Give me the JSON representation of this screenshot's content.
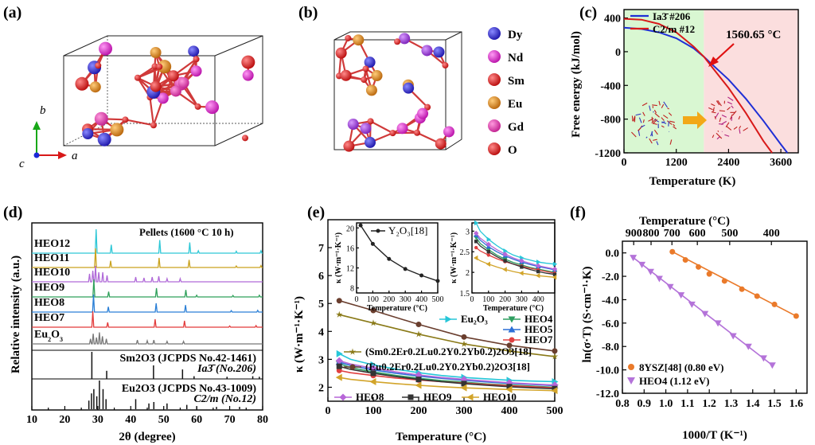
{
  "panels": {
    "a": {
      "label": "(a)",
      "axes": {
        "b": "b",
        "a": "a",
        "c": "c"
      }
    },
    "b": {
      "label": "(b)"
    },
    "c": {
      "label": "(c)"
    },
    "d": {
      "label": "(d)"
    },
    "e": {
      "label": "(e)"
    },
    "f": {
      "label": "(f)"
    }
  },
  "legend_b": [
    {
      "label": "Dy",
      "color": "#2a22c8"
    },
    {
      "label": "Nd",
      "color": "#e21fd9"
    },
    {
      "label": "Sm",
      "color": "#e01818"
    },
    {
      "label": "Eu",
      "color": "#e08a1e"
    },
    {
      "label": "Gd",
      "color": "#e83fb8"
    },
    {
      "label": "O",
      "color": "#ee1111"
    }
  ],
  "chart_data": [
    {
      "id": "c",
      "type": "line",
      "xlabel": "Temperature (K)",
      "ylabel": "Free energy (kJ/mol)",
      "xlim": [
        0,
        4000
      ],
      "ylim": [
        -1200,
        500
      ],
      "xticks": [
        0,
        1200,
        2400,
        3600
      ],
      "yticks": [
        -1200,
        -800,
        -400,
        0,
        400
      ],
      "annotation": "1560.65 °C",
      "series": [
        {
          "name": "Ia3̄ #206",
          "color": "#1f2fd6",
          "x": [
            0,
            400,
            800,
            1200,
            1600,
            1833,
            2000,
            2400,
            2800,
            3200,
            3600,
            3750
          ],
          "y": [
            285,
            270,
            230,
            160,
            40,
            -60,
            -140,
            -330,
            -560,
            -820,
            -1100,
            -1200
          ]
        },
        {
          "name": "C2/m #12",
          "color": "#d81a1a",
          "x": [
            0,
            400,
            800,
            1200,
            1600,
            1833,
            2000,
            2400,
            2800,
            3200,
            3400
          ],
          "y": [
            390,
            380,
            330,
            230,
            60,
            -60,
            -170,
            -430,
            -730,
            -1060,
            -1200
          ]
        }
      ]
    },
    {
      "id": "d",
      "type": "line",
      "title": "Pellets (1600 °C 10 h)",
      "xlabel": "2θ (degree)",
      "ylabel": "Relative intensity (a.u.)",
      "xlim": [
        10,
        80
      ],
      "xticks": [
        10,
        20,
        30,
        40,
        50,
        60,
        70,
        80
      ],
      "patterns": [
        {
          "name": "HEO12",
          "color": "#2ec7d6",
          "peaks": [
            [
              29.5,
              1.0
            ],
            [
              34.1,
              0.35
            ],
            [
              48.8,
              0.55
            ],
            [
              57.9,
              0.45
            ],
            [
              60.5,
              0.1
            ],
            [
              72,
              0.08
            ],
            [
              79.5,
              0.1
            ]
          ]
        },
        {
          "name": "HEO11",
          "color": "#c9a21e",
          "peaks": [
            [
              29.3,
              1.0
            ],
            [
              33.9,
              0.35
            ],
            [
              48.6,
              0.5
            ],
            [
              57.7,
              0.4
            ],
            [
              72,
              0.08
            ],
            [
              79.5,
              0.1
            ]
          ]
        },
        {
          "name": "HEO10",
          "color": "#b06ad8",
          "peaks": [
            [
              27.5,
              0.5
            ],
            [
              28.5,
              0.7
            ],
            [
              29.3,
              1.0
            ],
            [
              30.3,
              0.6
            ],
            [
              31.5,
              0.6
            ],
            [
              32.8,
              0.4
            ],
            [
              41.5,
              0.3
            ],
            [
              44,
              0.25
            ],
            [
              46.5,
              0.3
            ],
            [
              48.5,
              0.35
            ],
            [
              51,
              0.2
            ],
            [
              55,
              0.2
            ]
          ]
        },
        {
          "name": "HEO9",
          "color": "#2fa05a",
          "peaks": [
            [
              28.8,
              1.0
            ],
            [
              33.3,
              0.3
            ],
            [
              47.8,
              0.5
            ],
            [
              56.7,
              0.4
            ],
            [
              60,
              0.1
            ],
            [
              71,
              0.08
            ],
            [
              79,
              0.1
            ]
          ]
        },
        {
          "name": "HEO8",
          "color": "#2a7fd6",
          "peaks": [
            [
              28.7,
              1.0
            ],
            [
              33.2,
              0.3
            ],
            [
              47.7,
              0.5
            ],
            [
              56.6,
              0.4
            ],
            [
              70.5,
              0.08
            ],
            [
              78.5,
              0.1
            ]
          ]
        },
        {
          "name": "HEO7",
          "color": "#e23b3b",
          "peaks": [
            [
              28.5,
              1.0
            ],
            [
              33.0,
              0.3
            ],
            [
              47.4,
              0.5
            ],
            [
              56.3,
              0.4
            ],
            [
              70,
              0.08
            ],
            [
              78,
              0.1
            ]
          ]
        },
        {
          "name": "Eu2O3",
          "label_main": "Eu",
          "sub": "2",
          "label_tail": "O",
          "sub2": "3",
          "color": "#777777",
          "peaks": [
            [
              27.8,
              0.4
            ],
            [
              28.6,
              0.8
            ],
            [
              29.6,
              0.5
            ],
            [
              30.5,
              0.9
            ],
            [
              31.4,
              0.6
            ],
            [
              32.6,
              0.4
            ],
            [
              42,
              0.3
            ],
            [
              45,
              0.25
            ],
            [
              47,
              0.3
            ],
            [
              51,
              0.2
            ],
            [
              56,
              0.2
            ]
          ]
        }
      ],
      "references": [
        {
          "text": "Sm2O3 (JCPDS No.42-1461)",
          "space_group": "Ia3̄ (No.206)",
          "peaks": [
            [
              28.2,
              1.0
            ],
            [
              32.7,
              0.3
            ],
            [
              46.9,
              0.5
            ],
            [
              55.7,
              0.35
            ],
            [
              59.2,
              0.1
            ],
            [
              69.2,
              0.08
            ],
            [
              77,
              0.1
            ],
            [
              79,
              0.08
            ]
          ]
        },
        {
          "text": "Eu2O3 (JCPDS No.43-1009)",
          "space_group": "C2/m (No.12)",
          "peaks": [
            [
              27.3,
              0.3
            ],
            [
              28.1,
              0.55
            ],
            [
              28.8,
              0.7
            ],
            [
              29.7,
              0.45
            ],
            [
              30.5,
              1.0
            ],
            [
              31.6,
              0.7
            ],
            [
              32.5,
              0.35
            ],
            [
              41.5,
              0.35
            ],
            [
              45.5,
              0.2
            ],
            [
              47,
              0.25
            ],
            [
              51,
              0.2
            ],
            [
              57,
              0.15
            ],
            [
              60,
              0.1
            ],
            [
              66,
              0.08
            ],
            [
              73,
              0.08
            ]
          ]
        }
      ]
    },
    {
      "id": "e",
      "type": "line",
      "xlabel": "Temperature (°C)",
      "ylabel": "κ (W·m⁻¹·K⁻¹)",
      "xlim": [
        0,
        500
      ],
      "ylim": [
        1.5,
        8
      ],
      "xticks": [
        0,
        100,
        200,
        300,
        400,
        500
      ],
      "yticks": [
        2,
        3,
        4,
        5,
        6,
        7
      ],
      "series": [
        {
          "name": "(Sm0.2Er0.2Lu0.2Y0.2Yb0.2)2O3[18]",
          "color": "#8a7a18",
          "marker": "star",
          "x": [
            25,
            100,
            200,
            300,
            400,
            500
          ],
          "y": [
            4.6,
            4.3,
            3.9,
            3.55,
            3.3,
            3.1
          ]
        },
        {
          "name": "(Eu0.2Er0.2Lu0.2Y0.2Yb0.2)2O3[18]",
          "color": "#6a3e2e",
          "marker": "circle",
          "x": [
            25,
            100,
            200,
            300,
            400,
            500
          ],
          "y": [
            5.1,
            4.75,
            4.25,
            3.8,
            3.5,
            3.3
          ]
        },
        {
          "name": "Eu2O3",
          "color": "#26c6d8",
          "marker": "tri-right",
          "x": [
            25,
            50,
            100,
            150,
            200,
            250,
            300,
            350,
            400,
            450,
            500
          ],
          "y": [
            3.2,
            3.0,
            2.8,
            2.65,
            2.52,
            2.42,
            2.35,
            2.3,
            2.25,
            2.22,
            2.2
          ]
        },
        {
          "name": "HEO4",
          "color": "#2e9e60",
          "marker": "tri-down",
          "x": [
            25,
            50,
            100,
            150,
            200,
            250,
            300,
            350,
            400,
            450,
            500
          ],
          "y": [
            2.85,
            2.7,
            2.55,
            2.42,
            2.32,
            2.24,
            2.18,
            2.12,
            2.08,
            2.04,
            2.0
          ]
        },
        {
          "name": "HEO5",
          "color": "#2c6fd6",
          "marker": "tri-up",
          "x": [
            25,
            50,
            100,
            150,
            200,
            250,
            300,
            350,
            400,
            450,
            500
          ],
          "y": [
            2.9,
            2.78,
            2.62,
            2.5,
            2.4,
            2.32,
            2.25,
            2.19,
            2.14,
            2.1,
            2.06
          ]
        },
        {
          "name": "HEO7",
          "color": "#e04040",
          "marker": "circle",
          "x": [
            25,
            50,
            100,
            150,
            200,
            250,
            300,
            350,
            400,
            450,
            500
          ],
          "y": [
            2.6,
            2.52,
            2.42,
            2.33,
            2.26,
            2.2,
            2.15,
            2.1,
            2.06,
            2.02,
            1.98
          ]
        },
        {
          "name": "HEO8",
          "color": "#b766d8",
          "marker": "diamond",
          "x": [
            25,
            50,
            100,
            150,
            200,
            250,
            300,
            350,
            400,
            450,
            500
          ],
          "y": [
            2.95,
            2.83,
            2.68,
            2.55,
            2.44,
            2.35,
            2.28,
            2.22,
            2.16,
            2.12,
            2.08
          ]
        },
        {
          "name": "HEO9",
          "color": "#333333",
          "marker": "square",
          "x": [
            25,
            50,
            100,
            150,
            200,
            250,
            300,
            350,
            400,
            450,
            500
          ],
          "y": [
            2.75,
            2.64,
            2.5,
            2.38,
            2.28,
            2.2,
            2.13,
            2.07,
            2.02,
            1.98,
            1.95
          ]
        },
        {
          "name": "HEO10",
          "color": "#d2a42a",
          "marker": "tri-left",
          "x": [
            25,
            50,
            100,
            150,
            200,
            250,
            300,
            350,
            400,
            450,
            500
          ],
          "y": [
            2.35,
            2.28,
            2.2,
            2.13,
            2.07,
            2.02,
            1.98,
            1.95,
            1.92,
            1.9,
            1.88
          ]
        }
      ],
      "inset1": {
        "series": {
          "name": "Y2O3[18]",
          "x": [
            25,
            100,
            200,
            300,
            400,
            500
          ],
          "y": [
            20.5,
            16.8,
            13.8,
            11.8,
            10.5,
            9.4
          ]
        },
        "xlabel": "Temperature (°C)",
        "ylabel": "κ (W·m⁻¹·K⁻¹)",
        "xlim": [
          0,
          500
        ],
        "ylim": [
          7,
          21
        ],
        "xticks": [
          0,
          100,
          200,
          300,
          400,
          500
        ],
        "yticks": [
          8,
          12,
          16,
          20
        ]
      },
      "inset2": {
        "xlabel": "Temperature (°C)",
        "ylabel": "κ (W·m⁻¹·K⁻¹)",
        "xlim": [
          0,
          500
        ],
        "ylim": [
          1.5,
          3.2
        ],
        "xticks": [
          0,
          100,
          200,
          300,
          400
        ],
        "yticks": [
          1.5,
          2,
          2.5,
          3
        ]
      }
    },
    {
      "id": "f",
      "type": "scatter",
      "xlabel": "1000/T (K⁻¹)",
      "ylabel": "ln(σ·T) (S·cm⁻¹·K)",
      "top_xlabel": "Temperature (°C)",
      "xlim": [
        0.8,
        1.65
      ],
      "ylim": [
        -12,
        1
      ],
      "xticks": [
        0.8,
        0.9,
        1.0,
        1.1,
        1.2,
        1.3,
        1.4,
        1.5,
        1.6
      ],
      "yticks": [
        -12,
        -10,
        -8,
        -6,
        -4,
        -2,
        0
      ],
      "top_ticks": [
        "900",
        "800",
        "700",
        "600",
        "500",
        "400"
      ],
      "top_tick_positions": [
        0.852,
        0.932,
        1.028,
        1.145,
        1.294,
        1.486
      ],
      "series": [
        {
          "name": "8YSZ[48] (0.80 eV)",
          "color": "#ea7a2a",
          "marker": "circle",
          "x": [
            1.03,
            1.09,
            1.15,
            1.2,
            1.27,
            1.35,
            1.42,
            1.5,
            1.6
          ],
          "y": [
            0.1,
            -0.6,
            -1.2,
            -1.8,
            -2.4,
            -3.1,
            -3.7,
            -4.4,
            -5.4
          ]
        },
        {
          "name": "HEO4 (1.12 eV)",
          "color": "#b473d9",
          "marker": "tri-down",
          "x": [
            0.85,
            0.89,
            0.93,
            0.97,
            1.02,
            1.07,
            1.12,
            1.18,
            1.24,
            1.31,
            1.38,
            1.45,
            1.49
          ],
          "y": [
            -0.4,
            -1.0,
            -1.6,
            -2.2,
            -2.9,
            -3.6,
            -4.4,
            -5.2,
            -6.0,
            -7.1,
            -8.0,
            -9.0,
            -9.6
          ]
        }
      ]
    }
  ]
}
